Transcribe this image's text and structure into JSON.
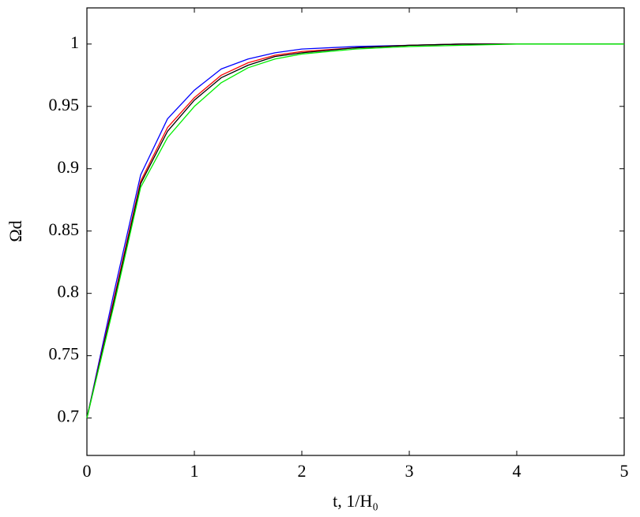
{
  "chart_data": {
    "type": "line",
    "x_label": "t, 1/H₀",
    "y_label": "Ωd",
    "x": [
      0,
      0.25,
      0.5,
      0.75,
      1,
      1.25,
      1.5,
      1.75,
      2,
      2.5,
      3,
      3.5,
      4,
      4.5,
      5
    ],
    "series": [
      {
        "color": "#0000ff",
        "values": [
          0.7,
          0.8,
          0.895,
          0.94,
          0.963,
          0.98,
          0.988,
          0.993,
          0.996,
          0.998,
          0.999,
          1,
          1,
          1,
          1
        ]
      },
      {
        "color": "#ff0000",
        "values": [
          0.7,
          0.795,
          0.89,
          0.933,
          0.957,
          0.975,
          0.985,
          0.991,
          0.994,
          0.997,
          0.999,
          1,
          1,
          1,
          1
        ]
      },
      {
        "color": "#000000",
        "values": [
          0.7,
          0.793,
          0.888,
          0.93,
          0.955,
          0.973,
          0.983,
          0.99,
          0.993,
          0.997,
          0.999,
          1,
          1,
          1,
          1
        ]
      },
      {
        "color": "#00ee00",
        "values": [
          0.7,
          0.79,
          0.885,
          0.925,
          0.95,
          0.969,
          0.981,
          0.988,
          0.992,
          0.996,
          0.998,
          0.999,
          1,
          1,
          1
        ]
      }
    ],
    "xlim": [
      0,
      5
    ],
    "xticks": [
      0,
      1,
      2,
      3,
      4,
      5
    ],
    "ylim": [
      0.67,
      1.029
    ],
    "yticks": [
      0.7,
      0.75,
      0.8,
      0.85,
      0.9,
      0.95,
      1
    ],
    "grid": false
  }
}
